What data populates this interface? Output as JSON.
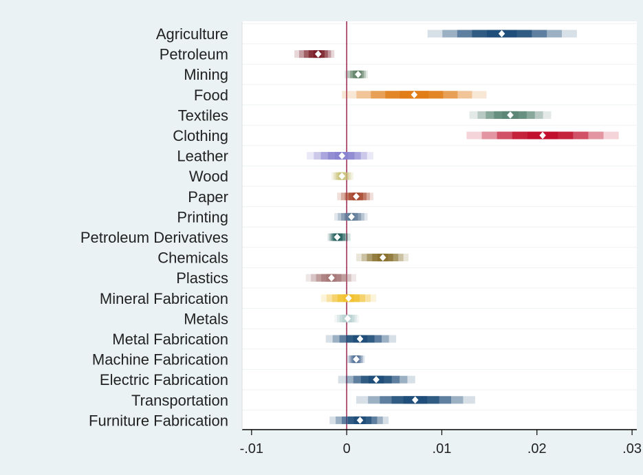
{
  "chart_data": {
    "type": "scatter",
    "subtype": "coefficient plot with graded confidence bands",
    "title": "",
    "xlabel": "",
    "ylabel": "",
    "xlim": [
      -0.011,
      0.0305
    ],
    "x_ticks": [
      -0.01,
      0,
      0.01,
      0.02,
      0.03
    ],
    "x_tick_labels": [
      ".01",
      "0",
      ".01",
      ".02",
      ".03"
    ],
    "x_tick_labels_note": "first tick printed as -.01",
    "x_tick_display": [
      "-.01",
      "0",
      ".01",
      ".02",
      ".03"
    ],
    "reference_line_x": 0,
    "grid": true,
    "legend": "none",
    "categories": [
      "Agriculture",
      "Petroleum",
      "Mining",
      "Food",
      "Textiles",
      "Clothing",
      "Leather",
      "Wood",
      "Paper",
      "Printing",
      "Petroleum Derivatives",
      "Chemicals",
      "Plastics",
      "Mineral Fabrication",
      "Metals",
      "Metal Fabrication",
      "Machine Fabrication",
      "Electric Fabrication",
      "Transportation",
      "Furniture Fabrication"
    ],
    "series": [
      {
        "estimate": 0.0163,
        "low": 0.0085,
        "high": 0.0242,
        "color": "#1f4e79"
      },
      {
        "estimate": -0.003,
        "low": -0.0055,
        "high": -0.0013,
        "color": "#7b1f2a"
      },
      {
        "estimate": 0.0012,
        "low": -0.0002,
        "high": 0.0022,
        "color": "#5f7f66"
      },
      {
        "estimate": 0.0071,
        "low": -0.0005,
        "high": 0.0147,
        "color": "#e07b16"
      },
      {
        "estimate": 0.0172,
        "low": 0.0129,
        "high": 0.0215,
        "color": "#5c8776"
      },
      {
        "estimate": 0.0206,
        "low": 0.0126,
        "high": 0.0286,
        "color": "#c0102c"
      },
      {
        "estimate": -0.0005,
        "low": -0.0042,
        "high": 0.0028,
        "color": "#8a84d0"
      },
      {
        "estimate": -0.0005,
        "low": -0.0016,
        "high": 0.0007,
        "color": "#c9c27a"
      },
      {
        "estimate": 0.001,
        "low": -0.001,
        "high": 0.0028,
        "color": "#a8472e"
      },
      {
        "estimate": 0.0005,
        "low": -0.0013,
        "high": 0.0022,
        "color": "#5f7b99"
      },
      {
        "estimate": -0.001,
        "low": -0.002,
        "high": 0.0004,
        "color": "#1f5d5a"
      },
      {
        "estimate": 0.0038,
        "low": 0.001,
        "high": 0.0065,
        "color": "#8a7230"
      },
      {
        "estimate": -0.0016,
        "low": -0.0043,
        "high": 0.001,
        "color": "#a87878"
      },
      {
        "estimate": 0.0002,
        "low": -0.0027,
        "high": 0.0031,
        "color": "#f1c232"
      },
      {
        "estimate": 0.0001,
        "low": -0.0013,
        "high": 0.0013,
        "color": "#b5cfcf"
      },
      {
        "estimate": 0.0014,
        "low": -0.0022,
        "high": 0.0052,
        "color": "#1f4e79"
      },
      {
        "estimate": 0.001,
        "low": 0.0,
        "high": 0.0019,
        "color": "#4f6e96"
      },
      {
        "estimate": 0.0031,
        "low": -0.0009,
        "high": 0.0072,
        "color": "#1f4e79"
      },
      {
        "estimate": 0.0072,
        "low": 0.001,
        "high": 0.0135,
        "color": "#1f4e79"
      },
      {
        "estimate": 0.0014,
        "low": -0.0018,
        "high": 0.0044,
        "color": "#1f4e79"
      }
    ]
  }
}
